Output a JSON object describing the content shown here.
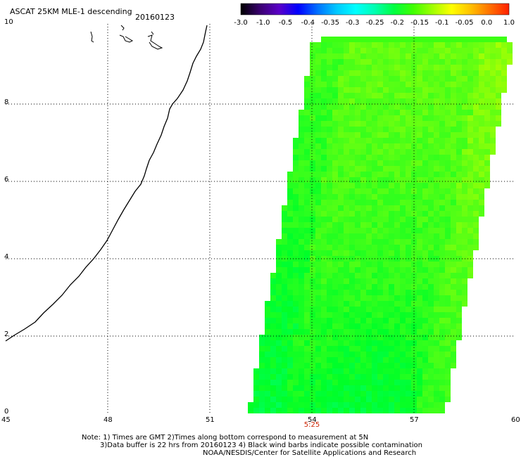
{
  "header": {
    "title": "ASCAT 25KM MLE-1 descending",
    "date": "20160123"
  },
  "colorbar": {
    "labels": [
      "-3.0",
      "-1.0",
      "-0.5",
      "-0.4",
      "-0.35",
      "-0.3",
      "-0.25",
      "-0.2",
      "-0.15",
      "-0.1",
      "-0.05",
      "0.0",
      "1.0"
    ],
    "colors": [
      "#000000",
      "#3a0070",
      "#5a00c8",
      "#0000ff",
      "#0070ff",
      "#00c8ff",
      "#00ffff",
      "#00ffb0",
      "#00ff40",
      "#40ff00",
      "#a0ff00",
      "#ffff00",
      "#ffc000",
      "#ff7000",
      "#ff2000"
    ]
  },
  "map": {
    "x_ticks": [
      "45",
      "48",
      "51",
      "54",
      "57",
      "60"
    ],
    "y_ticks": [
      "0",
      "2",
      "4",
      "6",
      "8",
      "10"
    ],
    "pass_time": "5:25"
  },
  "footer": {
    "line1": "Note: 1) Times are GMT 2)Times along bottom correspond to measurement at 5N",
    "line2": "3)Data buffer is 22 hrs from 20160123 4) Black wind barbs indicate possible contamination",
    "line3": "NOAA/NESDIS/Center for Satellite Applications and Research"
  }
}
